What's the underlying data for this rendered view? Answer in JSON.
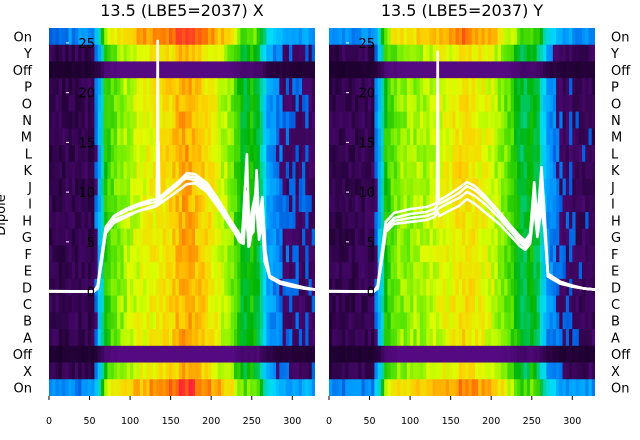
{
  "ylabel": "Dipole",
  "dipole_labels": [
    "On",
    "Y",
    "Off",
    "P",
    "O",
    "N",
    "M",
    "L",
    "K",
    "J",
    "I",
    "H",
    "G",
    "F",
    "E",
    "D",
    "C",
    "B",
    "A",
    "Off",
    "X",
    "On"
  ],
  "chart_data": [
    {
      "type": "heatmap",
      "title": "13.5 (LBE5=2037) X",
      "xticks": [
        0,
        50,
        100,
        150,
        200,
        250,
        300
      ],
      "xlim": [
        0,
        328
      ],
      "yticks": [
        0,
        5,
        10,
        15,
        20,
        25
      ],
      "ylim": [
        -10.5,
        26.5
      ],
      "rows": 22,
      "band_profile": [
        [
          0,
          0.06
        ],
        [
          55,
          0.07
        ],
        [
          63,
          0.25
        ],
        [
          70,
          0.5
        ],
        [
          75,
          0.55
        ],
        [
          85,
          0.6
        ],
        [
          110,
          0.66
        ],
        [
          150,
          0.72
        ],
        [
          168,
          0.78
        ],
        [
          200,
          0.7
        ],
        [
          225,
          0.6
        ],
        [
          240,
          0.45
        ],
        [
          250,
          0.5
        ],
        [
          258,
          0.45
        ],
        [
          270,
          0.2
        ],
        [
          290,
          0.12
        ],
        [
          328,
          0.1
        ]
      ],
      "series": [
        {
          "values": [
            [
              0,
              0.05
            ],
            [
              55,
              0
            ],
            [
              60,
              0.3
            ],
            [
              65,
              3
            ],
            [
              70,
              6
            ],
            [
              80,
              7.2
            ],
            [
              100,
              7.8
            ],
            [
              125,
              8.5
            ],
            [
              133,
              8.7
            ],
            [
              135,
              15
            ],
            [
              136,
              8.8
            ],
            [
              140,
              9.5
            ],
            [
              150,
              10.3
            ],
            [
              160,
              11
            ],
            [
              170,
              11.4
            ],
            [
              180,
              11.2
            ],
            [
              195,
              10.3
            ],
            [
              210,
              8.5
            ],
            [
              225,
              6.5
            ],
            [
              235,
              5
            ],
            [
              240,
              4.8
            ],
            [
              243,
              9
            ],
            [
              246,
              4.5
            ],
            [
              250,
              8
            ],
            [
              255,
              10
            ],
            [
              258,
              6
            ],
            [
              262,
              8
            ],
            [
              266,
              3
            ],
            [
              272,
              1.5
            ],
            [
              285,
              0.9
            ],
            [
              300,
              0.6
            ],
            [
              315,
              0.3
            ],
            [
              328,
              0.2
            ]
          ]
        },
        {
          "values": [
            [
              0,
              0.02
            ],
            [
              55,
              0
            ],
            [
              60,
              0.5
            ],
            [
              65,
              3.5
            ],
            [
              70,
              6.4
            ],
            [
              80,
              7.5
            ],
            [
              95,
              8.1
            ],
            [
              110,
              8.6
            ],
            [
              125,
              8.9
            ],
            [
              133,
              9
            ],
            [
              134,
              25.2
            ],
            [
              135,
              9.1
            ],
            [
              145,
              9.8
            ],
            [
              160,
              10.8
            ],
            [
              170,
              11.6
            ],
            [
              180,
              11.5
            ],
            [
              195,
              10.6
            ],
            [
              210,
              8.9
            ],
            [
              225,
              6.9
            ],
            [
              238,
              5.3
            ],
            [
              244,
              13.8
            ],
            [
              247,
              5.5
            ],
            [
              252,
              6
            ],
            [
              256,
              12.2
            ],
            [
              259,
              7
            ],
            [
              263,
              9.5
            ],
            [
              267,
              4
            ],
            [
              272,
              1.5
            ],
            [
              285,
              1
            ],
            [
              300,
              0.7
            ],
            [
              315,
              0.4
            ],
            [
              328,
              0.2
            ]
          ]
        },
        {
          "values": [
            [
              0,
              0.03
            ],
            [
              55,
              0
            ],
            [
              60,
              0.4
            ],
            [
              65,
              3.2
            ],
            [
              70,
              5.9
            ],
            [
              80,
              6.9
            ],
            [
              95,
              7.5
            ],
            [
              110,
              8.1
            ],
            [
              125,
              8.4
            ],
            [
              133,
              8.6
            ],
            [
              136,
              8.8
            ],
            [
              145,
              9.3
            ],
            [
              160,
              10.2
            ],
            [
              170,
              10.8
            ],
            [
              180,
              10.9
            ],
            [
              195,
              10
            ],
            [
              210,
              8.3
            ],
            [
              225,
              6.4
            ],
            [
              238,
              4.9
            ],
            [
              243,
              7.5
            ],
            [
              247,
              4.6
            ],
            [
              252,
              7
            ],
            [
              256,
              9.6
            ],
            [
              259,
              5.2
            ],
            [
              263,
              7.2
            ],
            [
              267,
              3.2
            ],
            [
              272,
              1.4
            ],
            [
              285,
              0.8
            ],
            [
              300,
              0.5
            ],
            [
              315,
              0.3
            ],
            [
              328,
              0.2
            ]
          ]
        },
        {
          "values": [
            [
              0,
              0.02
            ],
            [
              55,
              0
            ],
            [
              60,
              0.6
            ],
            [
              65,
              3.7
            ],
            [
              70,
              6.5
            ],
            [
              80,
              7.6
            ],
            [
              95,
              8.3
            ],
            [
              110,
              8.8
            ],
            [
              125,
              9.2
            ],
            [
              133,
              9.3
            ],
            [
              136,
              9.4
            ],
            [
              145,
              10.1
            ],
            [
              160,
              11.1
            ],
            [
              170,
              11.9
            ],
            [
              180,
              11.8
            ],
            [
              195,
              10.9
            ],
            [
              210,
              9.1
            ],
            [
              225,
              7
            ],
            [
              238,
              5.4
            ],
            [
              243,
              10
            ],
            [
              247,
              5.2
            ],
            [
              252,
              7.5
            ],
            [
              256,
              11.3
            ],
            [
              259,
              6.4
            ],
            [
              263,
              8.6
            ],
            [
              267,
              3.6
            ],
            [
              272,
              1.6
            ],
            [
              285,
              1
            ],
            [
              300,
              0.7
            ],
            [
              315,
              0.4
            ],
            [
              328,
              0.2
            ]
          ]
        }
      ]
    },
    {
      "type": "heatmap",
      "title": "13.5 (LBE5=2037) Y",
      "xticks": [
        0,
        50,
        100,
        150,
        200,
        250,
        300
      ],
      "xlim": [
        0,
        328
      ],
      "yticks": [
        0,
        5,
        10,
        15,
        20,
        25
      ],
      "ylim": [
        -10.5,
        26.5
      ],
      "rows": 22,
      "band_profile": [
        [
          0,
          0.06
        ],
        [
          55,
          0.07
        ],
        [
          63,
          0.25
        ],
        [
          70,
          0.5
        ],
        [
          75,
          0.55
        ],
        [
          85,
          0.6
        ],
        [
          110,
          0.62
        ],
        [
          150,
          0.68
        ],
        [
          165,
          0.72
        ],
        [
          200,
          0.66
        ],
        [
          225,
          0.55
        ],
        [
          240,
          0.42
        ],
        [
          250,
          0.48
        ],
        [
          258,
          0.42
        ],
        [
          270,
          0.18
        ],
        [
          290,
          0.1
        ],
        [
          328,
          0.08
        ]
      ],
      "series": [
        {
          "values": [
            [
              0,
              0.05
            ],
            [
              55,
              0
            ],
            [
              60,
              0.4
            ],
            [
              65,
              3
            ],
            [
              70,
              6
            ],
            [
              80,
              6.8
            ],
            [
              100,
              7
            ],
            [
              120,
              7.2
            ],
            [
              130,
              7.5
            ],
            [
              134,
              8
            ],
            [
              136,
              7.6
            ],
            [
              145,
              8
            ],
            [
              160,
              8.6
            ],
            [
              170,
              9.3
            ],
            [
              180,
              8.8
            ],
            [
              195,
              7.8
            ],
            [
              210,
              6.8
            ],
            [
              225,
              5.5
            ],
            [
              235,
              4.6
            ],
            [
              242,
              4.2
            ],
            [
              248,
              4.8
            ],
            [
              253,
              8.5
            ],
            [
              257,
              5.5
            ],
            [
              262,
              8.5
            ],
            [
              266,
              6
            ],
            [
              270,
              1.5
            ],
            [
              285,
              0.8
            ],
            [
              300,
              0.5
            ],
            [
              315,
              0.3
            ],
            [
              328,
              0.2
            ]
          ]
        },
        {
          "values": [
            [
              0,
              0.02
            ],
            [
              55,
              0
            ],
            [
              60,
              0.5
            ],
            [
              65,
              3.5
            ],
            [
              70,
              6.5
            ],
            [
              80,
              7.4
            ],
            [
              100,
              7.8
            ],
            [
              120,
              8
            ],
            [
              130,
              8.3
            ],
            [
              133,
              8.6
            ],
            [
              134,
              24.1
            ],
            [
              135,
              8.8
            ],
            [
              145,
              9.2
            ],
            [
              160,
              9.9
            ],
            [
              170,
              10.6
            ],
            [
              180,
              10.2
            ],
            [
              195,
              9.1
            ],
            [
              210,
              7.8
            ],
            [
              225,
              6.3
            ],
            [
              235,
              5.3
            ],
            [
              242,
              4.8
            ],
            [
              248,
              5.5
            ],
            [
              253,
              10
            ],
            [
              257,
              6.5
            ],
            [
              262,
              11.5
            ],
            [
              266,
              7
            ],
            [
              270,
              1.5
            ],
            [
              285,
              0.9
            ],
            [
              300,
              0.6
            ],
            [
              315,
              0.3
            ],
            [
              328,
              0.2
            ]
          ]
        },
        {
          "values": [
            [
              0,
              0.03
            ],
            [
              55,
              0
            ],
            [
              60,
              0.6
            ],
            [
              65,
              3.8
            ],
            [
              70,
              7
            ],
            [
              80,
              7.9
            ],
            [
              100,
              8.3
            ],
            [
              120,
              8.5
            ],
            [
              130,
              8.8
            ],
            [
              133,
              9
            ],
            [
              136,
              9.2
            ],
            [
              145,
              9.6
            ],
            [
              160,
              10.4
            ],
            [
              170,
              11
            ],
            [
              180,
              10.6
            ],
            [
              195,
              9.4
            ],
            [
              210,
              8
            ],
            [
              225,
              6.5
            ],
            [
              235,
              5.6
            ],
            [
              242,
              5.1
            ],
            [
              248,
              5.8
            ],
            [
              253,
              11
            ],
            [
              257,
              7
            ],
            [
              262,
              12.5
            ],
            [
              266,
              7.5
            ],
            [
              270,
              1.8
            ],
            [
              285,
              1
            ],
            [
              300,
              0.6
            ],
            [
              315,
              0.3
            ],
            [
              328,
              0.2
            ]
          ]
        },
        {
          "values": [
            [
              0,
              0.02
            ],
            [
              55,
              0
            ],
            [
              60,
              0.3
            ],
            [
              65,
              3.2
            ],
            [
              70,
              6.2
            ],
            [
              80,
              7.1
            ],
            [
              100,
              7.4
            ],
            [
              120,
              7.6
            ],
            [
              130,
              7.9
            ],
            [
              133,
              8.2
            ],
            [
              136,
              8.4
            ],
            [
              145,
              8.8
            ],
            [
              160,
              9.4
            ],
            [
              170,
              10
            ],
            [
              180,
              9.6
            ],
            [
              195,
              8.6
            ],
            [
              210,
              7.4
            ],
            [
              225,
              6
            ],
            [
              235,
              5
            ],
            [
              242,
              4.5
            ],
            [
              248,
              5.2
            ],
            [
              253,
              9
            ],
            [
              257,
              6
            ],
            [
              262,
              10
            ],
            [
              266,
              6.5
            ],
            [
              270,
              1.6
            ],
            [
              285,
              0.9
            ],
            [
              300,
              0.5
            ],
            [
              315,
              0.3
            ],
            [
              328,
              0.2
            ]
          ]
        }
      ]
    }
  ]
}
